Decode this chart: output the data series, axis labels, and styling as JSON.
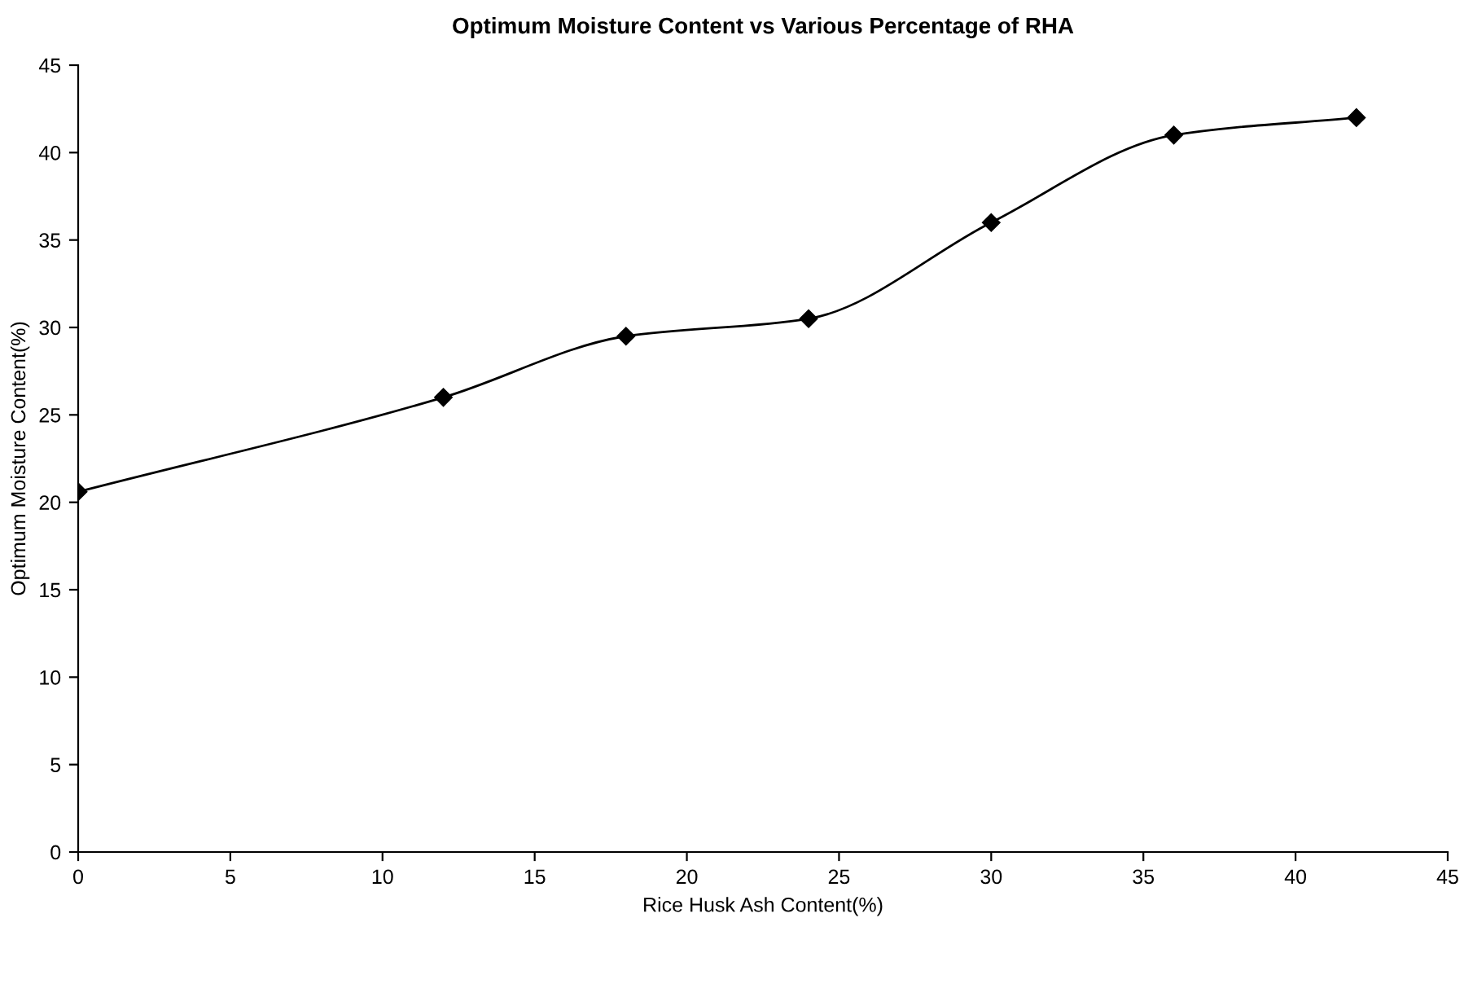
{
  "chart_data": {
    "type": "line",
    "title": "Optimum Moisture Content vs Various Percentage of RHA",
    "xlabel": "Rice Husk Ash Content(%)",
    "ylabel": "Optimum Moisture Content(%)",
    "x": [
      0,
      12,
      18,
      24,
      30,
      36,
      42
    ],
    "series": [
      {
        "color": "#000000",
        "values": [
          20.6,
          26,
          29.5,
          30.5,
          36,
          41,
          42
        ]
      }
    ],
    "xlim": [
      0,
      45
    ],
    "xticks": [
      0,
      5,
      10,
      15,
      20,
      25,
      30,
      35,
      40,
      45
    ],
    "ylim": [
      0,
      45
    ],
    "yticks": [
      0,
      5,
      10,
      15,
      20,
      25,
      30,
      35,
      40,
      45
    ],
    "grid": false,
    "legend": false,
    "marker": "diamond",
    "line_style": "solid"
  }
}
